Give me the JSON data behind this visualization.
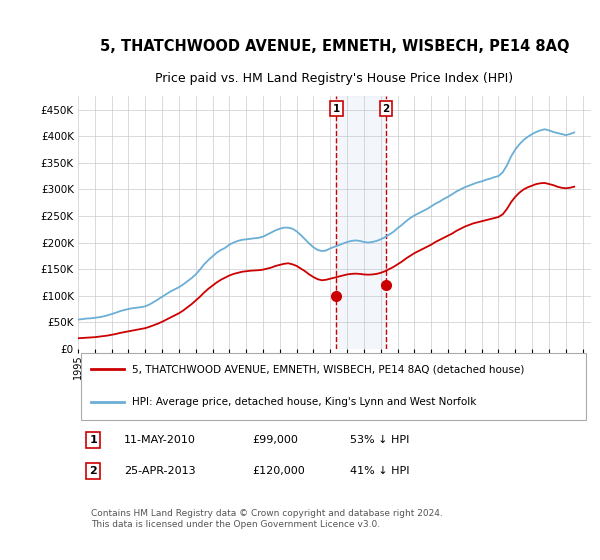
{
  "title": "5, THATCHWOOD AVENUE, EMNETH, WISBECH, PE14 8AQ",
  "subtitle": "Price paid vs. HM Land Registry's House Price Index (HPI)",
  "title_fontsize": 10.5,
  "subtitle_fontsize": 9,
  "background_color": "#ffffff",
  "grid_color": "#cccccc",
  "hpi_color": "#6baed6",
  "price_color": "#cc0000",
  "ylim": [
    0,
    475000
  ],
  "yticks": [
    0,
    50000,
    100000,
    150000,
    200000,
    250000,
    300000,
    350000,
    400000,
    450000
  ],
  "ytick_labels": [
    "£0",
    "£50K",
    "£100K",
    "£150K",
    "£200K",
    "£250K",
    "£300K",
    "£350K",
    "£400K",
    "£450K"
  ],
  "legend_label_red": "5, THATCHWOOD AVENUE, EMNETH, WISBECH, PE14 8AQ (detached house)",
  "legend_label_blue": "HPI: Average price, detached house, King's Lynn and West Norfolk",
  "sale1_date": "11-MAY-2010",
  "sale1_price": 99000,
  "sale1_pct": "53% ↓ HPI",
  "sale2_date": "25-APR-2013",
  "sale2_price": 120000,
  "sale2_pct": "41% ↓ HPI",
  "sale1_x": 2010.36,
  "sale2_x": 2013.32,
  "footnote": "Contains HM Land Registry data © Crown copyright and database right 2024.\nThis data is licensed under the Open Government Licence v3.0.",
  "hpi_x": [
    1995.0,
    1995.25,
    1995.5,
    1995.75,
    1996.0,
    1996.25,
    1996.5,
    1996.75,
    1997.0,
    1997.25,
    1997.5,
    1997.75,
    1998.0,
    1998.25,
    1998.5,
    1998.75,
    1999.0,
    1999.25,
    1999.5,
    1999.75,
    2000.0,
    2000.25,
    2000.5,
    2000.75,
    2001.0,
    2001.25,
    2001.5,
    2001.75,
    2002.0,
    2002.25,
    2002.5,
    2002.75,
    2003.0,
    2003.25,
    2003.5,
    2003.75,
    2004.0,
    2004.25,
    2004.5,
    2004.75,
    2005.0,
    2005.25,
    2005.5,
    2005.75,
    2006.0,
    2006.25,
    2006.5,
    2006.75,
    2007.0,
    2007.25,
    2007.5,
    2007.75,
    2008.0,
    2008.25,
    2008.5,
    2008.75,
    2009.0,
    2009.25,
    2009.5,
    2009.75,
    2010.0,
    2010.25,
    2010.5,
    2010.75,
    2011.0,
    2011.25,
    2011.5,
    2011.75,
    2012.0,
    2012.25,
    2012.5,
    2012.75,
    2013.0,
    2013.25,
    2013.5,
    2013.75,
    2014.0,
    2014.25,
    2014.5,
    2014.75,
    2015.0,
    2015.25,
    2015.5,
    2015.75,
    2016.0,
    2016.25,
    2016.5,
    2016.75,
    2017.0,
    2017.25,
    2017.5,
    2017.75,
    2018.0,
    2018.25,
    2018.5,
    2018.75,
    2019.0,
    2019.25,
    2019.5,
    2019.75,
    2020.0,
    2020.25,
    2020.5,
    2020.75,
    2021.0,
    2021.25,
    2021.5,
    2021.75,
    2022.0,
    2022.25,
    2022.5,
    2022.75,
    2023.0,
    2023.25,
    2023.5,
    2023.75,
    2024.0,
    2024.25,
    2024.5
  ],
  "hpi_y": [
    55000,
    56000,
    57000,
    57500,
    58500,
    59500,
    61000,
    63000,
    65500,
    68000,
    71000,
    73000,
    75000,
    76500,
    77500,
    78500,
    80000,
    83500,
    88000,
    93000,
    98000,
    103000,
    108000,
    112000,
    116000,
    121000,
    127000,
    133000,
    140000,
    149000,
    159000,
    167000,
    174000,
    181000,
    186000,
    190000,
    196000,
    200000,
    203000,
    205000,
    206000,
    207000,
    208000,
    209000,
    211000,
    215000,
    219000,
    223000,
    226000,
    228000,
    228000,
    226000,
    221000,
    214000,
    206000,
    198000,
    191000,
    186000,
    184000,
    185000,
    189000,
    192000,
    195000,
    198000,
    201000,
    203000,
    204000,
    203000,
    201000,
    200000,
    201000,
    203000,
    206000,
    210000,
    215000,
    220000,
    227000,
    233000,
    240000,
    246000,
    251000,
    255000,
    259000,
    263000,
    268000,
    273000,
    277000,
    282000,
    286000,
    291000,
    296000,
    300000,
    304000,
    307000,
    310000,
    313000,
    315000,
    318000,
    320000,
    323000,
    325000,
    332000,
    345000,
    362000,
    375000,
    385000,
    393000,
    399000,
    404000,
    408000,
    411000,
    413000,
    411000,
    408000,
    406000,
    404000,
    402000,
    404000,
    407000
  ],
  "price_x": [
    1995.0,
    1995.25,
    1995.5,
    1995.75,
    1996.0,
    1996.25,
    1996.5,
    1996.75,
    1997.0,
    1997.25,
    1997.5,
    1997.75,
    1998.0,
    1998.25,
    1998.5,
    1998.75,
    1999.0,
    1999.25,
    1999.5,
    1999.75,
    2000.0,
    2000.25,
    2000.5,
    2000.75,
    2001.0,
    2001.25,
    2001.5,
    2001.75,
    2002.0,
    2002.25,
    2002.5,
    2002.75,
    2003.0,
    2003.25,
    2003.5,
    2003.75,
    2004.0,
    2004.25,
    2004.5,
    2004.75,
    2005.0,
    2005.25,
    2005.5,
    2005.75,
    2006.0,
    2006.25,
    2006.5,
    2006.75,
    2007.0,
    2007.25,
    2007.5,
    2007.75,
    2008.0,
    2008.25,
    2008.5,
    2008.75,
    2009.0,
    2009.25,
    2009.5,
    2009.75,
    2010.0,
    2010.25,
    2010.5,
    2010.75,
    2011.0,
    2011.25,
    2011.5,
    2011.75,
    2012.0,
    2012.25,
    2012.5,
    2012.75,
    2013.0,
    2013.25,
    2013.5,
    2013.75,
    2014.0,
    2014.25,
    2014.5,
    2014.75,
    2015.0,
    2015.25,
    2015.5,
    2015.75,
    2016.0,
    2016.25,
    2016.5,
    2016.75,
    2017.0,
    2017.25,
    2017.5,
    2017.75,
    2018.0,
    2018.25,
    2018.5,
    2018.75,
    2019.0,
    2019.25,
    2019.5,
    2019.75,
    2020.0,
    2020.25,
    2020.5,
    2020.75,
    2021.0,
    2021.25,
    2021.5,
    2021.75,
    2022.0,
    2022.25,
    2022.5,
    2022.75,
    2023.0,
    2023.25,
    2023.5,
    2023.75,
    2024.0,
    2024.25,
    2024.5
  ],
  "price_y": [
    20000,
    20500,
    21000,
    21500,
    22000,
    23000,
    24000,
    25000,
    26500,
    28000,
    30000,
    31500,
    33000,
    34500,
    36000,
    37500,
    39000,
    41500,
    44500,
    47500,
    51000,
    55000,
    59000,
    63000,
    67000,
    72000,
    78000,
    84000,
    91000,
    98000,
    106000,
    113000,
    119000,
    125000,
    130000,
    134000,
    138000,
    141000,
    143000,
    145000,
    146000,
    147000,
    147500,
    148000,
    149000,
    151000,
    153000,
    156000,
    158000,
    160000,
    161000,
    159000,
    156000,
    151000,
    146000,
    140000,
    135000,
    131000,
    129000,
    130000,
    132000,
    134000,
    136000,
    138000,
    140000,
    141000,
    141500,
    141000,
    140000,
    139500,
    140000,
    141000,
    143000,
    146000,
    150000,
    154000,
    159000,
    164000,
    170000,
    175000,
    180000,
    184000,
    188000,
    192000,
    196000,
    201000,
    205000,
    209000,
    213000,
    217000,
    222000,
    226000,
    230000,
    233000,
    236000,
    238000,
    240000,
    242000,
    244000,
    246000,
    248000,
    253000,
    263000,
    276000,
    286000,
    294000,
    300000,
    304000,
    307000,
    310000,
    311500,
    312000,
    310000,
    308000,
    305000,
    303000,
    302000,
    303000,
    305000
  ]
}
